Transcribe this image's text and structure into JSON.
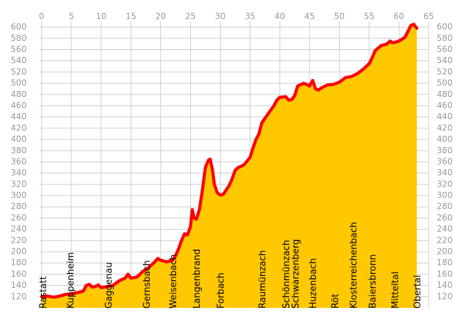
{
  "chart_data": {
    "type": "area",
    "x": [
      0,
      1,
      2,
      3,
      4,
      5,
      6,
      7,
      7.5,
      8,
      8.5,
      9,
      9.5,
      10,
      11,
      12,
      13,
      14,
      14.5,
      15,
      16,
      17,
      18,
      19,
      19.5,
      20,
      21,
      22,
      22.5,
      23,
      23.5,
      24,
      24.5,
      25,
      25.3,
      25.6,
      26,
      26.5,
      27,
      27.5,
      28,
      28.3,
      28.7,
      29,
      29.5,
      30,
      30.5,
      31,
      31.5,
      32,
      32.5,
      33,
      33.5,
      34,
      35,
      35.5,
      36,
      36.5,
      37,
      38,
      39,
      39.5,
      40,
      41,
      41.5,
      42,
      42.5,
      43,
      44,
      44.5,
      45,
      45.5,
      46,
      46.5,
      47,
      48,
      49,
      50,
      51,
      52,
      53,
      54,
      55,
      55.5,
      56,
      57,
      58,
      58.5,
      59,
      60,
      61,
      61.5,
      62,
      62.5,
      63
    ],
    "values": [
      120,
      121,
      119,
      121,
      124,
      125,
      127,
      130,
      140,
      142,
      137,
      138,
      141,
      136,
      138,
      140,
      148,
      153,
      160,
      153,
      155,
      165,
      172,
      182,
      188,
      185,
      182,
      185,
      193,
      205,
      220,
      232,
      230,
      245,
      275,
      260,
      258,
      275,
      310,
      350,
      363,
      365,
      345,
      320,
      305,
      301,
      302,
      310,
      318,
      330,
      345,
      350,
      352,
      355,
      368,
      385,
      400,
      410,
      430,
      445,
      460,
      470,
      475,
      476,
      470,
      471,
      478,
      495,
      500,
      498,
      495,
      505,
      490,
      488,
      492,
      497,
      498,
      502,
      510,
      512,
      517,
      525,
      535,
      545,
      558,
      567,
      570,
      575,
      572,
      575,
      582,
      592,
      603,
      605,
      598
    ],
    "fill_color": "#ffc800",
    "line_color": "#ff0000",
    "xlim": [
      0,
      65
    ],
    "ylim": [
      100,
      610
    ],
    "xticks": [
      0,
      5,
      10,
      15,
      20,
      25,
      30,
      35,
      40,
      45,
      50,
      55,
      60,
      65
    ],
    "yticks": [
      120,
      140,
      160,
      180,
      200,
      220,
      240,
      260,
      280,
      300,
      320,
      340,
      360,
      380,
      400,
      420,
      440,
      460,
      480,
      500,
      520,
      540,
      560,
      580,
      600
    ],
    "grid": true,
    "annotations": [
      {
        "text": "Rastatt",
        "x": 0.2
      },
      {
        "text": "Kuppenheim",
        "x": 4.8
      },
      {
        "text": "Gaggenau",
        "x": 11.2
      },
      {
        "text": "Gernsbach",
        "x": 17.6
      },
      {
        "text": "Weisenbach",
        "x": 22
      },
      {
        "text": "Langenbrand",
        "x": 26
      },
      {
        "text": "Forbach",
        "x": 30
      },
      {
        "text": "Raumünzach",
        "x": 37
      },
      {
        "text": "Schönmünzach",
        "x": 41
      },
      {
        "text": "Schwarzenberg",
        "x": 42.6
      },
      {
        "text": "Huzenbach",
        "x": 45.5
      },
      {
        "text": "Röt",
        "x": 49.2
      },
      {
        "text": "Klosterreichenbach",
        "x": 52.3
      },
      {
        "text": "Baiersbronn",
        "x": 55.5
      },
      {
        "text": "Mitteltal",
        "x": 59.3
      },
      {
        "text": "Obertal",
        "x": 63
      }
    ]
  }
}
